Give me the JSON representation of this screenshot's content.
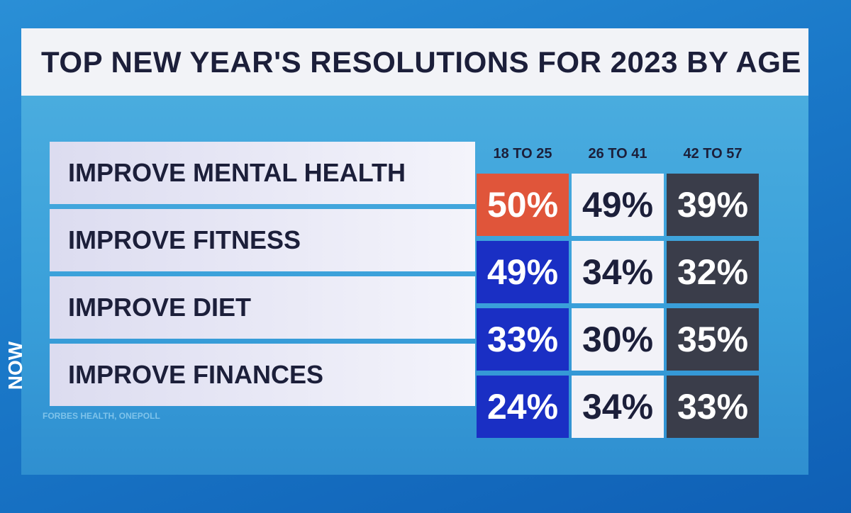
{
  "title": "TOP NEW YEAR'S RESOLUTIONS FOR 2023 BY AGE",
  "table": {
    "columns": [
      "18 TO 25",
      "26 TO 41",
      "42 TO 57"
    ],
    "rows": [
      {
        "label": "IMPROVE MENTAL HEALTH",
        "cells": [
          "50%",
          "49%",
          "39%"
        ]
      },
      {
        "label": "IMPROVE FITNESS",
        "cells": [
          "49%",
          "34%",
          "32%"
        ]
      },
      {
        "label": "IMPROVE DIET",
        "cells": [
          "33%",
          "30%",
          "35%"
        ]
      },
      {
        "label": "IMPROVE FINANCES",
        "cells": [
          "24%",
          "34%",
          "33%"
        ]
      }
    ]
  },
  "source": "FORBES HEALTH, ONEPOLL",
  "side_label": "NOW"
}
